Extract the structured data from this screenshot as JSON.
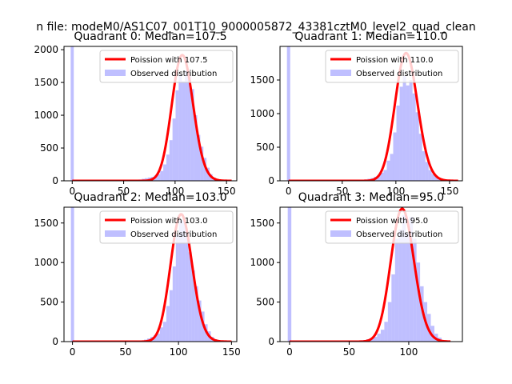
{
  "figure": {
    "suptitle": "n file: modeM0/AS1C07_001T10_9000005872_43381cztM0_level2_quad_clean"
  },
  "colors": {
    "poisson": "#ff0000",
    "observed": "#8080ff",
    "observed_alpha": 0.5
  },
  "chart_data": [
    {
      "type": "bar",
      "title": "Quadrant 0: Median=107.5",
      "xlim": [
        -8,
        160
      ],
      "ylim": [
        0,
        2050
      ],
      "xticks": [
        0,
        50,
        100,
        150
      ],
      "yticks": [
        0,
        500,
        1000,
        1500,
        2000
      ],
      "legend_placement": "top-right",
      "series": [
        {
          "name": "Poission with 107.5",
          "kind": "line",
          "mean": 107.5,
          "peak": 1920,
          "x_range": [
            0,
            155
          ]
        },
        {
          "name": "Observed distribution",
          "kind": "histogram",
          "bin_width": 3,
          "bins": [
            [
              0,
              2400
            ],
            [
              63,
              10
            ],
            [
              66,
              20
            ],
            [
              69,
              30
            ],
            [
              72,
              40
            ],
            [
              75,
              50
            ],
            [
              78,
              60
            ],
            [
              81,
              80
            ],
            [
              84,
              100
            ],
            [
              87,
              150
            ],
            [
              90,
              250
            ],
            [
              93,
              400
            ],
            [
              96,
              620
            ],
            [
              99,
              950
            ],
            [
              102,
              1380
            ],
            [
              105,
              1620
            ],
            [
              108,
              1520
            ],
            [
              111,
              1680
            ],
            [
              114,
              1600
            ],
            [
              117,
              1400
            ],
            [
              120,
              1000
            ],
            [
              123,
              700
            ],
            [
              126,
              520
            ],
            [
              129,
              350
            ],
            [
              132,
              200
            ],
            [
              135,
              100
            ],
            [
              138,
              50
            ],
            [
              141,
              30
            ],
            [
              144,
              15
            ],
            [
              147,
              10
            ],
            [
              150,
              5
            ]
          ]
        }
      ]
    },
    {
      "type": "bar",
      "title": "Quadrant 1: Median=110.0",
      "xlim": [
        -8,
        162
      ],
      "ylim": [
        0,
        2000
      ],
      "xticks": [
        0,
        50,
        100,
        150
      ],
      "yticks": [
        0,
        500,
        1000,
        1500
      ],
      "legend_placement": "top-right",
      "series": [
        {
          "name": "Poission with 110.0",
          "kind": "line",
          "mean": 110.0,
          "peak": 1900,
          "x_range": [
            0,
            158
          ]
        },
        {
          "name": "Observed distribution",
          "kind": "histogram",
          "bin_width": 3,
          "bins": [
            [
              0,
              2400
            ],
            [
              63,
              5
            ],
            [
              66,
              10
            ],
            [
              69,
              15
            ],
            [
              72,
              20
            ],
            [
              75,
              30
            ],
            [
              78,
              40
            ],
            [
              81,
              60
            ],
            [
              84,
              80
            ],
            [
              87,
              120
            ],
            [
              90,
              160
            ],
            [
              93,
              300
            ],
            [
              96,
              400
            ],
            [
              99,
              720
            ],
            [
              102,
              1120
            ],
            [
              105,
              1400
            ],
            [
              108,
              1560
            ],
            [
              111,
              1420
            ],
            [
              114,
              1500
            ],
            [
              117,
              1300
            ],
            [
              120,
              1020
            ],
            [
              123,
              700
            ],
            [
              126,
              440
            ],
            [
              129,
              280
            ],
            [
              132,
              160
            ],
            [
              135,
              100
            ],
            [
              138,
              60
            ],
            [
              141,
              30
            ],
            [
              144,
              15
            ],
            [
              147,
              5
            ]
          ]
        }
      ]
    },
    {
      "type": "bar",
      "title": "Quadrant 2: Median=103.0",
      "xlim": [
        -8,
        155
      ],
      "ylim": [
        0,
        1700
      ],
      "xticks": [
        0,
        50,
        100,
        150
      ],
      "yticks": [
        0,
        500,
        1000,
        1500
      ],
      "legend_placement": "top-right",
      "series": [
        {
          "name": "Poission with 103.0",
          "kind": "line",
          "mean": 103.0,
          "peak": 1610,
          "x_range": [
            0,
            150
          ]
        },
        {
          "name": "Observed distribution",
          "kind": "histogram",
          "bin_width": 3,
          "bins": [
            [
              0,
              2000
            ],
            [
              60,
              5
            ],
            [
              63,
              10
            ],
            [
              66,
              15
            ],
            [
              69,
              25
            ],
            [
              72,
              40
            ],
            [
              75,
              60
            ],
            [
              78,
              80
            ],
            [
              81,
              100
            ],
            [
              84,
              180
            ],
            [
              87,
              250
            ],
            [
              90,
              450
            ],
            [
              93,
              650
            ],
            [
              96,
              950
            ],
            [
              99,
              1350
            ],
            [
              102,
              1530
            ],
            [
              105,
              1540
            ],
            [
              108,
              1400
            ],
            [
              111,
              1130
            ],
            [
              114,
              900
            ],
            [
              117,
              700
            ],
            [
              120,
              520
            ],
            [
              123,
              380
            ],
            [
              126,
              220
            ],
            [
              129,
              130
            ],
            [
              132,
              60
            ],
            [
              135,
              30
            ],
            [
              138,
              15
            ],
            [
              141,
              10
            ]
          ]
        }
      ]
    },
    {
      "type": "bar",
      "title": "Quadrant 3: Median=95.0",
      "xlim": [
        -8,
        145
      ],
      "ylim": [
        0,
        1700
      ],
      "xticks": [
        0,
        50,
        100
      ],
      "yticks": [
        0,
        500,
        1000,
        1500
      ],
      "legend_placement": "top-right",
      "series": [
        {
          "name": "Poission with 95.0",
          "kind": "line",
          "mean": 95.0,
          "peak": 1680,
          "x_range": [
            0,
            135
          ]
        },
        {
          "name": "Observed distribution",
          "kind": "histogram",
          "bin_width": 3,
          "bins": [
            [
              0,
              2000
            ],
            [
              57,
              5
            ],
            [
              60,
              10
            ],
            [
              63,
              20
            ],
            [
              66,
              30
            ],
            [
              69,
              40
            ],
            [
              72,
              60
            ],
            [
              75,
              100
            ],
            [
              78,
              150
            ],
            [
              81,
              250
            ],
            [
              84,
              500
            ],
            [
              87,
              850
            ],
            [
              90,
              1300
            ],
            [
              93,
              1420
            ],
            [
              96,
              1600
            ],
            [
              99,
              1370
            ],
            [
              102,
              1580
            ],
            [
              105,
              1300
            ],
            [
              108,
              1000
            ],
            [
              111,
              700
            ],
            [
              114,
              500
            ],
            [
              117,
              350
            ],
            [
              120,
              200
            ],
            [
              123,
              100
            ],
            [
              126,
              50
            ],
            [
              129,
              20
            ],
            [
              132,
              10
            ]
          ]
        }
      ]
    }
  ]
}
